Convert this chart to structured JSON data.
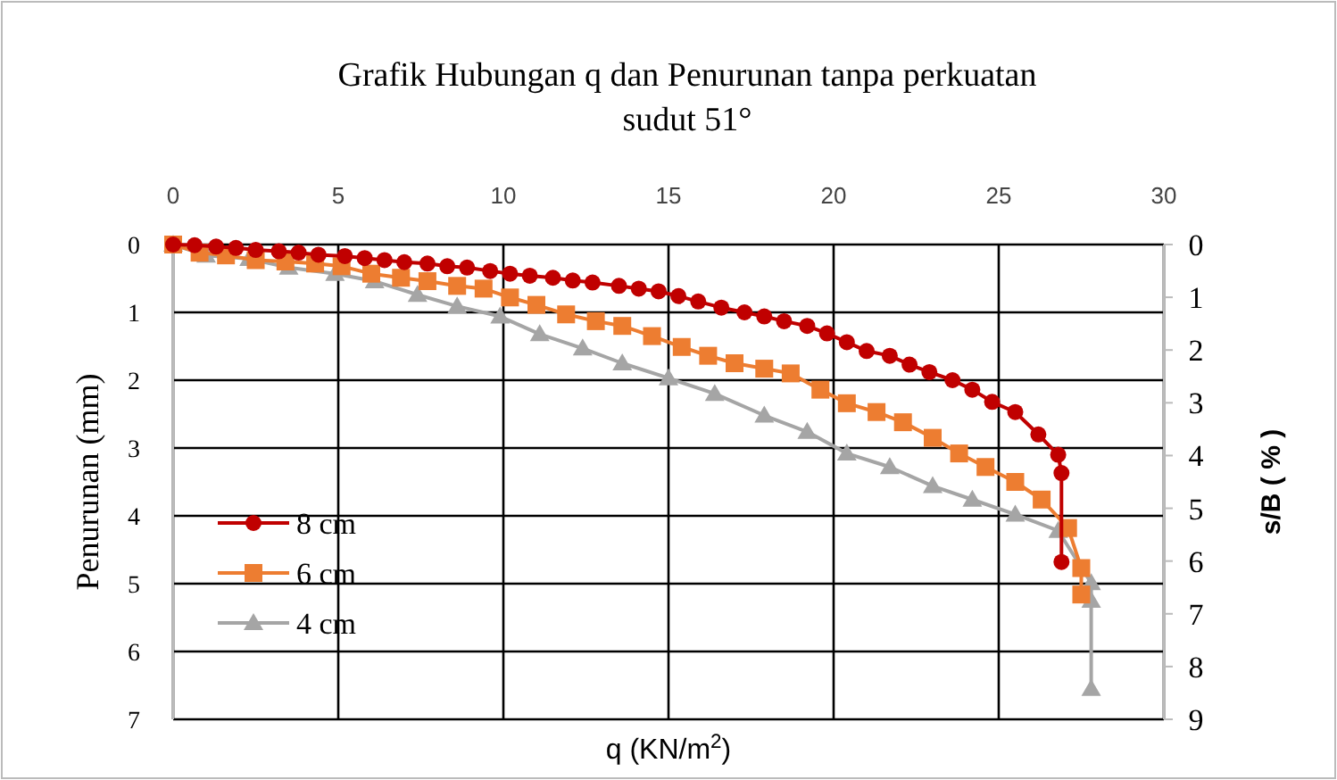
{
  "chart_data": {
    "type": "line",
    "title": "Grafik Hubungan q dan Penurunan tanpa perkuatan sudut 51°",
    "xlabel": "q (KN/m$^{2}$)",
    "ylabel": "Penurunan (mm)",
    "y2label": "s/B ( % )",
    "xlim": [
      0,
      30
    ],
    "xticks": [
      0,
      5,
      10,
      15,
      20,
      25,
      30
    ],
    "ylim": [
      7,
      0
    ],
    "yticks": [
      0,
      1,
      2,
      3,
      4,
      5,
      6,
      7
    ],
    "y2lim": [
      9,
      0
    ],
    "y2ticks": [
      0,
      1,
      2,
      3,
      4,
      5,
      6,
      7,
      8,
      9
    ],
    "grid": true,
    "legend": "left",
    "line_style": "solid",
    "series": [
      {
        "name": "8 cm",
        "color": "#c00000",
        "marker": "circle",
        "x": [
          0,
          0.65,
          1.3,
          1.9,
          2.5,
          3.2,
          3.8,
          4.4,
          5.2,
          5.8,
          6.4,
          7.0,
          7.7,
          8.3,
          8.9,
          9.6,
          10.2,
          10.8,
          11.5,
          12.1,
          12.7,
          13.5,
          14.1,
          14.7,
          15.3,
          15.9,
          16.6,
          17.3,
          17.9,
          18.5,
          19.2,
          19.8,
          20.4,
          21.0,
          21.7,
          22.3,
          22.9,
          23.6,
          24.2,
          24.8,
          25.5,
          26.2,
          26.8,
          26.9,
          26.9
        ],
        "values": [
          0,
          0.01,
          0.03,
          0.05,
          0.08,
          0.1,
          0.12,
          0.15,
          0.17,
          0.2,
          0.23,
          0.26,
          0.28,
          0.32,
          0.34,
          0.39,
          0.43,
          0.46,
          0.49,
          0.53,
          0.56,
          0.61,
          0.65,
          0.69,
          0.76,
          0.84,
          0.93,
          1.0,
          1.06,
          1.13,
          1.2,
          1.31,
          1.44,
          1.57,
          1.64,
          1.77,
          1.88,
          2.0,
          2.14,
          2.32,
          2.47,
          2.8,
          3.1,
          3.37,
          4.68
        ]
      },
      {
        "name": "6 cm",
        "color": "#ed7d31",
        "marker": "square",
        "x": [
          0,
          0.8,
          1.6,
          2.5,
          3.4,
          4.3,
          5.1,
          6.0,
          6.9,
          7.7,
          8.6,
          9.4,
          10.2,
          11.0,
          11.9,
          12.8,
          13.6,
          14.5,
          15.4,
          16.2,
          17.0,
          17.9,
          18.7,
          19.6,
          20.4,
          21.3,
          22.1,
          23.0,
          23.8,
          24.6,
          25.5,
          26.3,
          27.1,
          27.5,
          27.5
        ],
        "values": [
          0,
          0.12,
          0.16,
          0.23,
          0.25,
          0.28,
          0.32,
          0.43,
          0.49,
          0.54,
          0.61,
          0.65,
          0.78,
          0.89,
          1.03,
          1.13,
          1.2,
          1.35,
          1.51,
          1.64,
          1.75,
          1.83,
          1.9,
          2.14,
          2.34,
          2.47,
          2.62,
          2.85,
          3.08,
          3.28,
          3.5,
          3.76,
          4.18,
          4.77,
          5.16
        ]
      },
      {
        "name": "4 cm",
        "color": "#a5a5a5",
        "marker": "triangle",
        "x": [
          0,
          1.0,
          2.3,
          3.5,
          4.9,
          6.1,
          7.4,
          8.6,
          9.9,
          11.1,
          12.4,
          13.6,
          15.0,
          16.4,
          17.9,
          19.2,
          20.4,
          21.7,
          23.0,
          24.2,
          25.5,
          26.8,
          27.8,
          27.8,
          27.8
        ],
        "values": [
          0,
          0.16,
          0.21,
          0.34,
          0.43,
          0.54,
          0.74,
          0.91,
          1.06,
          1.32,
          1.53,
          1.75,
          1.97,
          2.2,
          2.52,
          2.76,
          3.08,
          3.28,
          3.56,
          3.76,
          3.98,
          4.22,
          4.99,
          5.25,
          6.55
        ]
      }
    ]
  }
}
